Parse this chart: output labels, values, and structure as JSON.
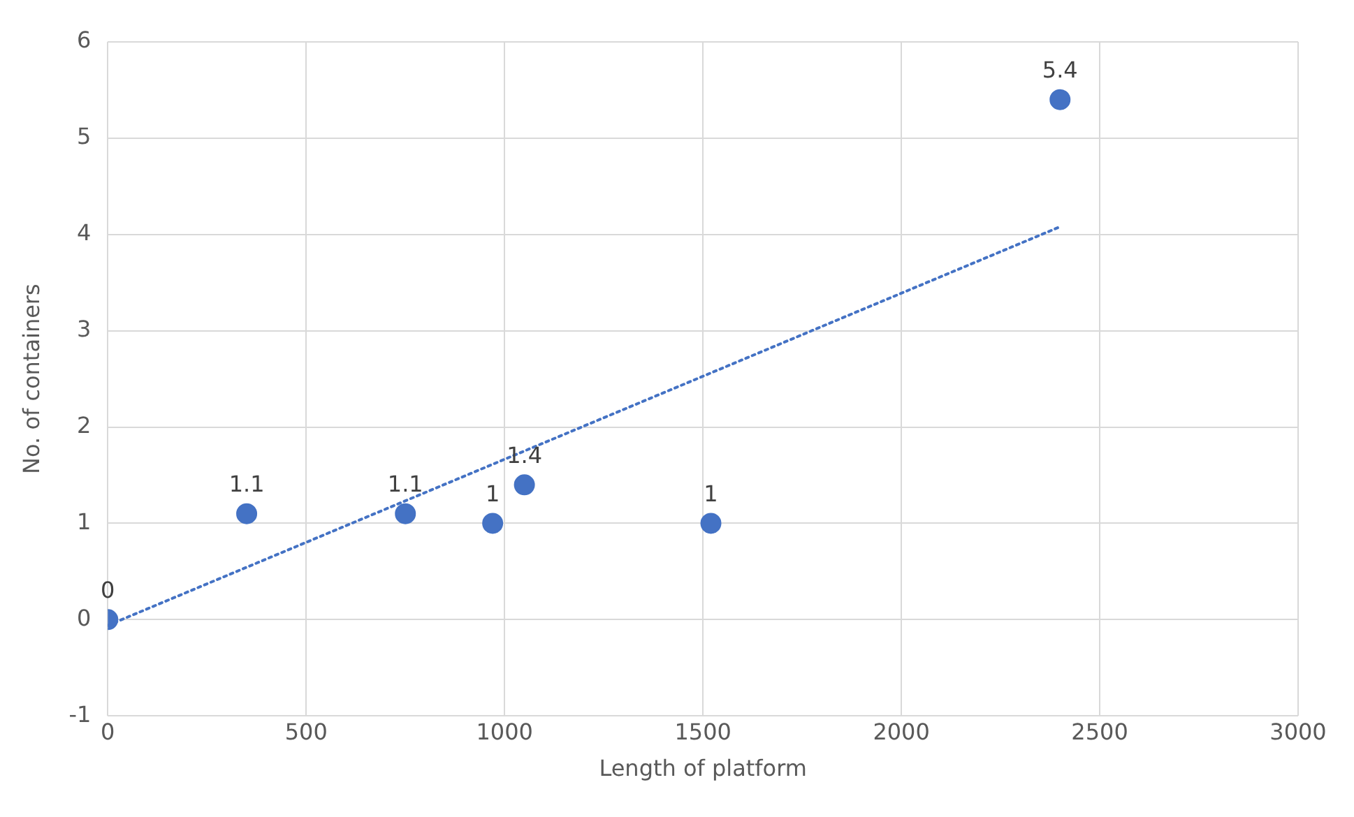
{
  "chart_data": {
    "type": "scatter",
    "xlabel": "Length of platform",
    "ylabel": "No. of containers",
    "xlim": [
      0,
      3000
    ],
    "xticks": [
      0,
      500,
      1000,
      1500,
      2000,
      2500,
      3000
    ],
    "ylim": [
      -1,
      6
    ],
    "yticks": [
      -1,
      0,
      1,
      2,
      3,
      4,
      5,
      6
    ],
    "grid": true,
    "legend": false,
    "marker": "circle",
    "series": [
      {
        "color": "#4472c4",
        "x": [
          0,
          350,
          750,
          970,
          1050,
          1520,
          2400
        ],
        "values": [
          0,
          1.1,
          1.1,
          1,
          1.4,
          1,
          5.4
        ],
        "value_labels": [
          "0",
          "1.1",
          "1.1",
          "1",
          "1.4",
          "1",
          "5.4"
        ]
      },
      {
        "type": "line",
        "color": "#4472c4",
        "line_style": "dotted",
        "marker": "none",
        "x": [
          0,
          2400
        ],
        "values": [
          -0.06,
          4.08
        ]
      }
    ]
  }
}
